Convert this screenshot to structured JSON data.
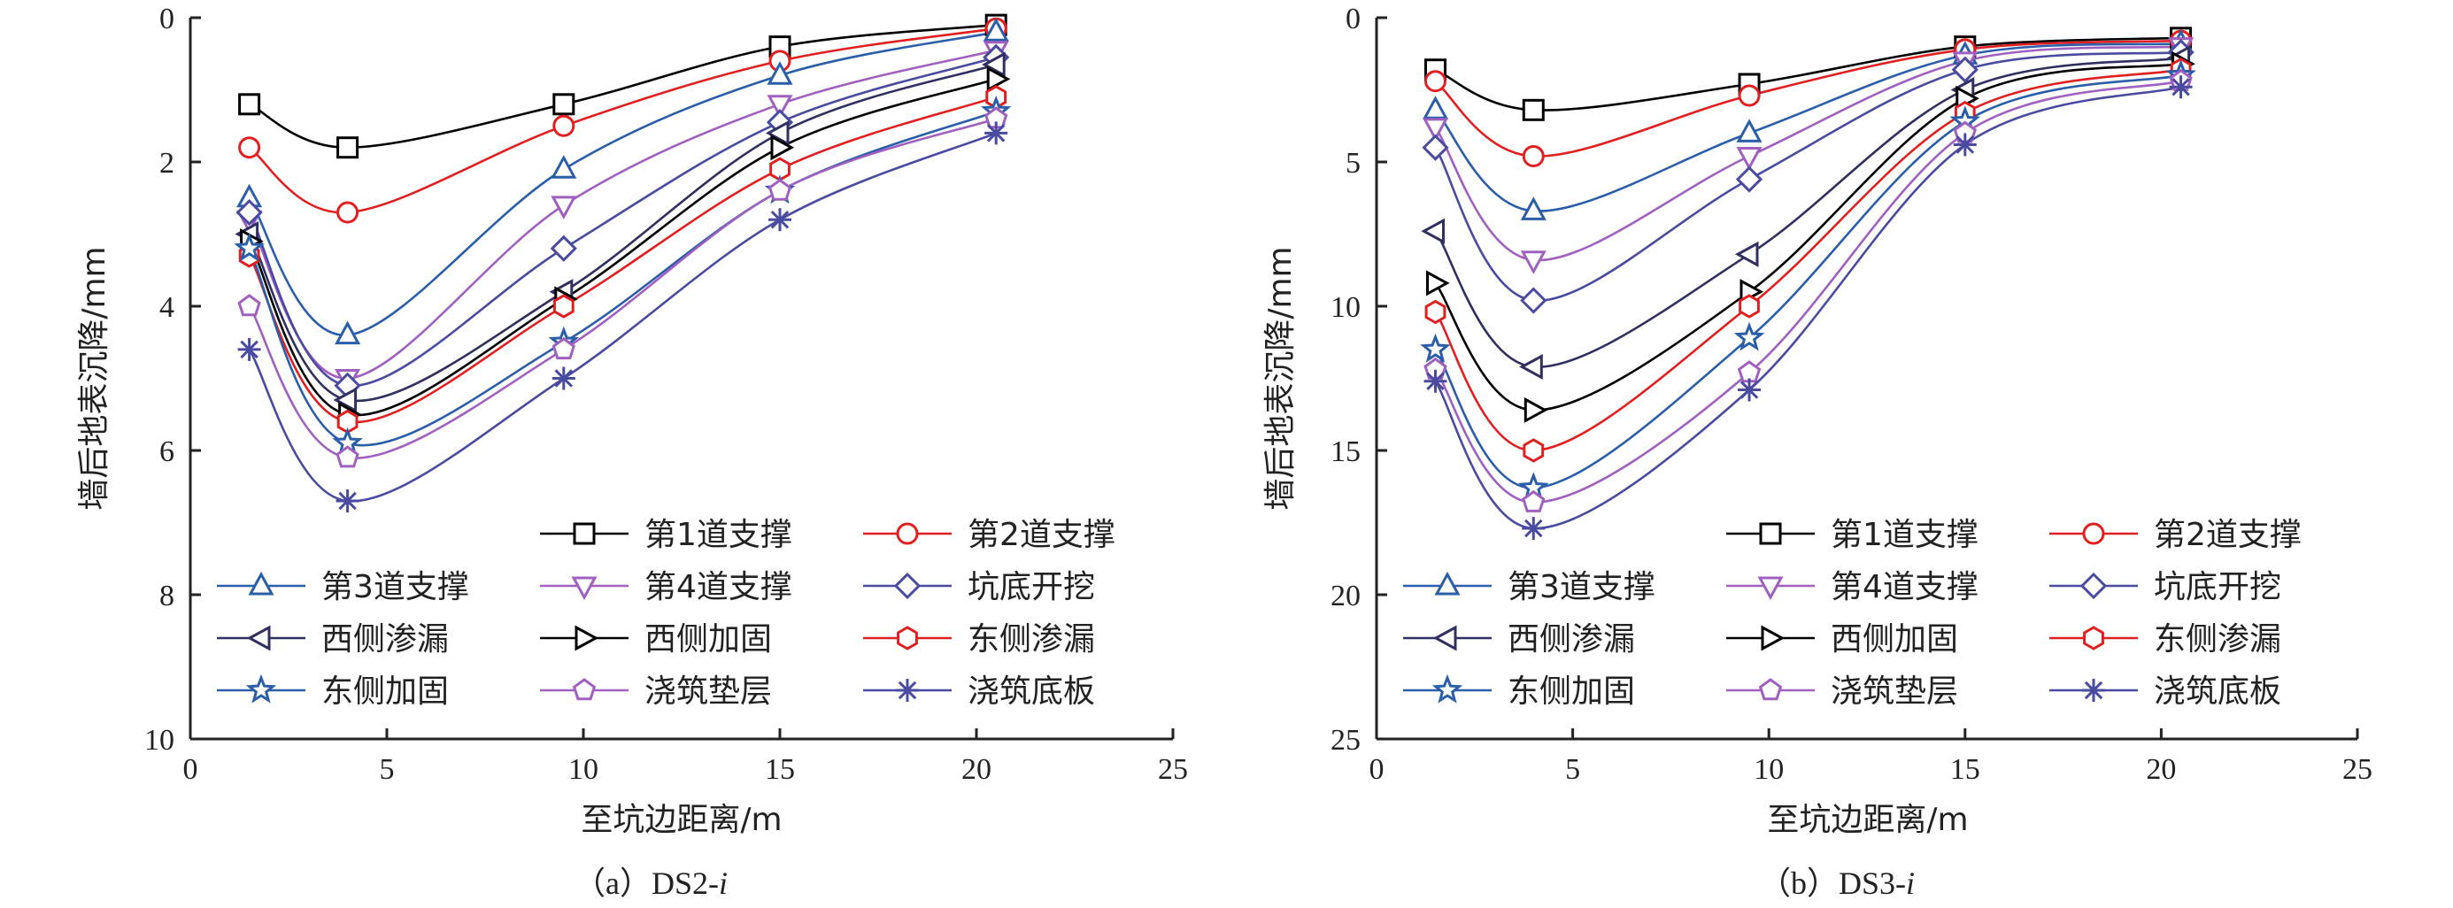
{
  "chart_data": [
    {
      "type": "line",
      "caption": "（a）DS2-i",
      "caption_prefix": "（a）DS2-",
      "caption_italic": "i",
      "xlabel": "至坑边距离/m",
      "ylabel": "墙后地表沉降/mm",
      "xlim": [
        0,
        25
      ],
      "ylim": [
        0,
        10
      ],
      "y_inverted": true,
      "xticks": [
        "0",
        "5",
        "10",
        "15",
        "20",
        "25"
      ],
      "yticks": [
        "0",
        "2",
        "4",
        "6",
        "8",
        "10"
      ],
      "x": [
        1.5,
        4,
        9.5,
        15,
        20.5
      ],
      "series": [
        {
          "name": "第1道支撑",
          "color": "#000000",
          "marker": "square",
          "values": [
            1.2,
            1.8,
            1.2,
            0.4,
            0.1
          ]
        },
        {
          "name": "第2道支撑",
          "color": "#e02020",
          "marker": "circle",
          "values": [
            1.8,
            2.7,
            1.5,
            0.6,
            0.15
          ]
        },
        {
          "name": "第3道支撑",
          "color": "#2a5ea8",
          "marker": "triangle-up",
          "values": [
            2.5,
            4.4,
            2.1,
            0.8,
            0.2
          ]
        },
        {
          "name": "第4道支撑",
          "color": "#a060c0",
          "marker": "triangle-down",
          "values": [
            2.8,
            5.0,
            2.6,
            1.2,
            0.45
          ]
        },
        {
          "name": "坑底开挖",
          "color": "#4a4aa0",
          "marker": "diamond",
          "values": [
            2.7,
            5.1,
            3.2,
            1.45,
            0.55
          ]
        },
        {
          "name": "西侧渗漏",
          "color": "#303060",
          "marker": "triangle-left",
          "values": [
            3.0,
            5.3,
            3.8,
            1.6,
            0.65
          ]
        },
        {
          "name": "西侧加固",
          "color": "#000000",
          "marker": "triangle-right",
          "values": [
            3.1,
            5.5,
            3.9,
            1.8,
            0.85
          ]
        },
        {
          "name": "东侧渗漏",
          "color": "#e02020",
          "marker": "hexagon",
          "values": [
            3.3,
            5.6,
            4.0,
            2.1,
            1.1
          ]
        },
        {
          "name": "东侧加固",
          "color": "#2a5ea8",
          "marker": "star",
          "values": [
            3.2,
            5.9,
            4.5,
            2.4,
            1.3
          ]
        },
        {
          "name": "浇筑垫层",
          "color": "#a060c0",
          "marker": "pentagon",
          "values": [
            4.0,
            6.1,
            4.6,
            2.4,
            1.4
          ]
        },
        {
          "name": "浇筑底板",
          "color": "#4a4aa0",
          "marker": "asterisk",
          "values": [
            4.6,
            6.7,
            5.0,
            2.8,
            1.6
          ]
        }
      ]
    },
    {
      "type": "line",
      "caption": "（b）DS3-i",
      "caption_prefix": "（b）DS3-",
      "caption_italic": "i",
      "xlabel": "至坑边距离/m",
      "ylabel": "墙后地表沉降/mm",
      "xlim": [
        0,
        25
      ],
      "ylim": [
        0,
        25
      ],
      "y_inverted": true,
      "xticks": [
        "0",
        "5",
        "10",
        "15",
        "20",
        "25"
      ],
      "yticks": [
        "0",
        "5",
        "10",
        "15",
        "20",
        "25"
      ],
      "x": [
        1.5,
        4,
        9.5,
        15,
        20.5
      ],
      "series": [
        {
          "name": "第1道支撑",
          "color": "#000000",
          "marker": "square",
          "values": [
            1.8,
            3.2,
            2.3,
            1.0,
            0.7
          ]
        },
        {
          "name": "第2道支撑",
          "color": "#e02020",
          "marker": "circle",
          "values": [
            2.2,
            4.8,
            2.7,
            1.1,
            0.8
          ]
        },
        {
          "name": "第3道支撑",
          "color": "#2a5ea8",
          "marker": "triangle-up",
          "values": [
            3.2,
            6.7,
            4.0,
            1.3,
            0.9
          ]
        },
        {
          "name": "第4道支撑",
          "color": "#a060c0",
          "marker": "triangle-down",
          "values": [
            3.8,
            8.4,
            4.8,
            1.5,
            1.0
          ]
        },
        {
          "name": "坑底开挖",
          "color": "#4a4aa0",
          "marker": "diamond",
          "values": [
            4.5,
            9.8,
            5.6,
            1.8,
            1.2
          ]
        },
        {
          "name": "西侧渗漏",
          "color": "#303060",
          "marker": "triangle-left",
          "values": [
            7.4,
            12.1,
            8.2,
            2.5,
            1.4
          ]
        },
        {
          "name": "西侧加固",
          "color": "#000000",
          "marker": "triangle-right",
          "values": [
            9.2,
            13.6,
            9.5,
            2.8,
            1.6
          ]
        },
        {
          "name": "东侧渗漏",
          "color": "#e02020",
          "marker": "hexagon",
          "values": [
            10.2,
            15.0,
            10.0,
            3.3,
            1.8
          ]
        },
        {
          "name": "东侧加固",
          "color": "#2a5ea8",
          "marker": "star",
          "values": [
            11.5,
            16.3,
            11.1,
            3.6,
            2.0
          ]
        },
        {
          "name": "浇筑垫层",
          "color": "#a060c0",
          "marker": "pentagon",
          "values": [
            12.2,
            16.8,
            12.3,
            4.0,
            2.2
          ]
        },
        {
          "name": "浇筑底板",
          "color": "#4a4aa0",
          "marker": "asterisk",
          "values": [
            12.6,
            17.7,
            12.9,
            4.4,
            2.4
          ]
        }
      ]
    }
  ]
}
